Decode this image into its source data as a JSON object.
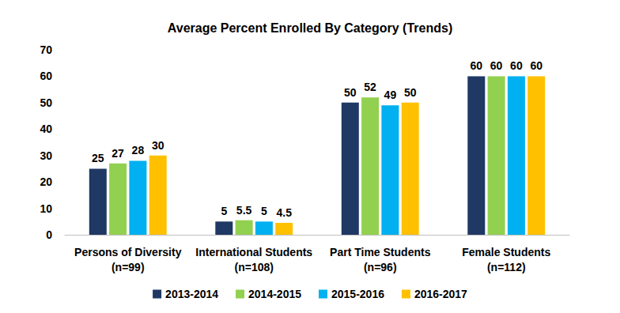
{
  "chart_data": {
    "type": "bar",
    "title": "Average Percent Enrolled By Category (Trends)",
    "categories": [
      "Persons of Diversity\n(n=99)",
      "International Students\n(n=108)",
      "Part Time Students\n(n=96)",
      "Female Students\n(n=112)"
    ],
    "series": [
      {
        "name": "2013-2014",
        "color": "#1f3864",
        "values": [
          25,
          5,
          50,
          60
        ]
      },
      {
        "name": "2014-2015",
        "color": "#92d050",
        "values": [
          27,
          5.5,
          52,
          60
        ]
      },
      {
        "name": "2015-2016",
        "color": "#00b0f0",
        "values": [
          28,
          5,
          49,
          60
        ]
      },
      {
        "name": "2016-2017",
        "color": "#ffc000",
        "values": [
          30,
          4.5,
          50,
          60
        ]
      }
    ],
    "ylim": [
      0,
      70
    ],
    "yticks": [
      0,
      10,
      20,
      30,
      40,
      50,
      60,
      70
    ],
    "grid": false,
    "legend": "bottom",
    "data_labels": true
  }
}
